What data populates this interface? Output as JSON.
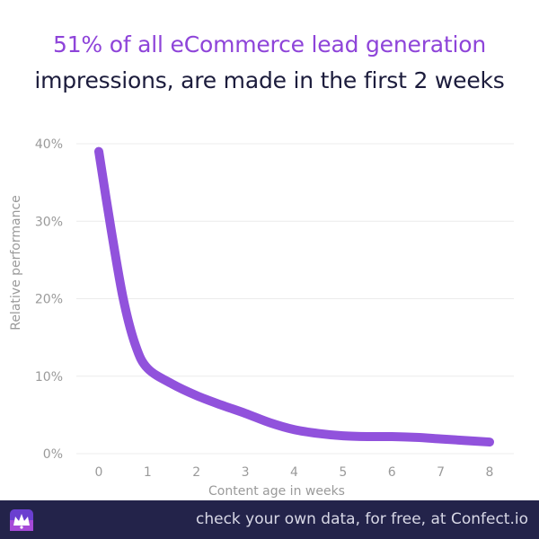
{
  "title": {
    "line1": "51% of all eCommerce lead generation",
    "line2": "impressions, are made in the first 2 weeks"
  },
  "footer": {
    "text": "check your own data, for free, at Confect.io",
    "logo_icon": "confect-crown-logo-icon"
  },
  "colors": {
    "accent": "#8e44d9",
    "title_dark": "#1c1c3c",
    "footer_bg": "#23234a",
    "line": "#9152dc",
    "grid": "#ececec",
    "axis_text": "#9a9a9a"
  },
  "chart_data": {
    "type": "line",
    "xlabel": "Content age in weeks",
    "ylabel": "Relative performance",
    "ylim": [
      0,
      40
    ],
    "xlim": [
      0,
      8
    ],
    "x_ticks": [
      "0",
      "1",
      "2",
      "3",
      "4",
      "5",
      "6",
      "7",
      "8"
    ],
    "y_ticks": [
      "0%",
      "10%",
      "20%",
      "30%",
      "40%"
    ],
    "grid": true,
    "legend": "none",
    "series": [
      {
        "x": [
          0,
          0.25,
          0.5,
          0.75,
          1,
          1.5,
          2,
          2.5,
          3,
          3.5,
          4,
          4.5,
          5,
          5.5,
          6,
          6.5,
          7,
          7.5,
          8
        ],
        "values": [
          39,
          29,
          20,
          14,
          11,
          9,
          7.5,
          6.3,
          5.2,
          4,
          3.1,
          2.6,
          2.3,
          2.2,
          2.2,
          2.1,
          1.9,
          1.7,
          1.5
        ]
      }
    ]
  }
}
